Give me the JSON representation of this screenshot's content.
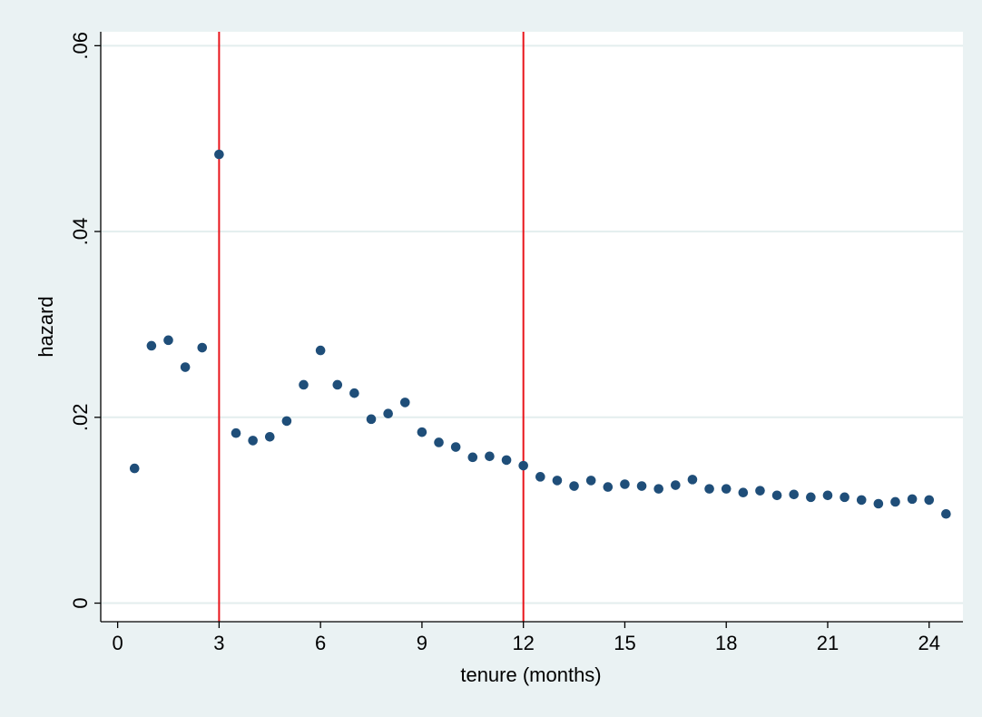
{
  "chart_data": {
    "type": "scatter",
    "title": "",
    "xlabel": "tenure (months)",
    "ylabel": "hazard",
    "xlim": [
      -0.5,
      25
    ],
    "ylim": [
      -0.002,
      0.0615
    ],
    "xticks": [
      0,
      3,
      6,
      9,
      12,
      15,
      18,
      21,
      24
    ],
    "xtick_labels": [
      "0",
      "3",
      "6",
      "9",
      "12",
      "15",
      "18",
      "21",
      "24"
    ],
    "yticks": [
      0,
      0.02,
      0.04,
      0.06
    ],
    "ytick_labels": [
      "0",
      ".02",
      ".04",
      ".06"
    ],
    "grid": "horizontal",
    "legend": "none",
    "reference_lines_x": [
      3,
      12
    ],
    "colors": {
      "marker": "#1f4e79",
      "reference_line": "#e8141b",
      "plot_background": "#ffffff",
      "page_background": "#eaf2f3",
      "grid": "#e3eeee"
    },
    "series": [
      {
        "x": [
          0.5,
          1,
          1.5,
          2,
          2.5,
          3,
          3.5,
          4,
          4.5,
          5,
          5.5,
          6,
          6.5,
          7,
          7.5,
          8,
          8.5,
          9,
          9.5,
          10,
          10.5,
          11,
          11.5,
          12,
          12.5,
          13,
          13.5,
          14,
          14.5,
          15,
          15.5,
          16,
          16.5,
          17,
          17.5,
          18,
          18.5,
          19,
          19.5,
          20,
          20.5,
          21,
          21.5,
          22,
          22.5,
          23,
          23.5,
          24,
          24.5
        ],
        "y": [
          0.0145,
          0.0277,
          0.0283,
          0.0254,
          0.0275,
          0.0483,
          0.0183,
          0.0175,
          0.0179,
          0.0196,
          0.0235,
          0.0272,
          0.0235,
          0.0226,
          0.0198,
          0.0204,
          0.0216,
          0.0184,
          0.0173,
          0.0168,
          0.0157,
          0.0158,
          0.0154,
          0.0148,
          0.0136,
          0.0132,
          0.0126,
          0.0132,
          0.0125,
          0.0128,
          0.0126,
          0.0123,
          0.0127,
          0.0133,
          0.0123,
          0.0123,
          0.0119,
          0.0121,
          0.0116,
          0.0117,
          0.0114,
          0.0116,
          0.0114,
          0.0111,
          0.0107,
          0.0109,
          0.0112,
          0.0111,
          0.0096
        ]
      }
    ]
  }
}
